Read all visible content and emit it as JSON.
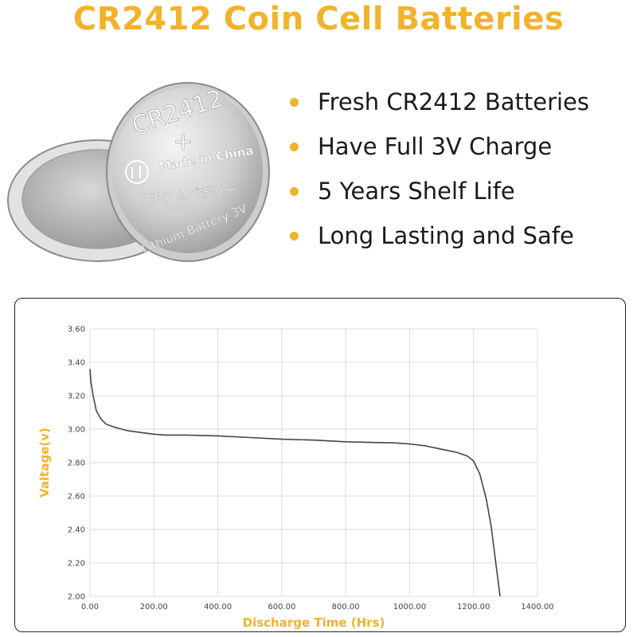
{
  "header": {
    "title": "CR2412  Coin Cell Batteries"
  },
  "battery": {
    "model": "CR2412",
    "plus": "+",
    "made_in": "Made in China",
    "japanese": "リチウムバテリー",
    "lithium": "Lithium Battery 3V"
  },
  "features": [
    "Fresh CR2412 Batteries",
    "Have Full 3V Charge",
    "5 Years Shelf Life",
    "Long Lasting and Safe"
  ],
  "colors": {
    "accent": "#f2b32a",
    "line": "#444444",
    "grid": "#dddddd"
  },
  "chart_data": {
    "type": "line",
    "title": "",
    "xlabel": "Discharge Time (Hrs)",
    "ylabel": "Valtage(v)",
    "xlim": [
      0,
      1400
    ],
    "ylim": [
      2.0,
      3.6
    ],
    "x_ticks": [
      "0.00",
      "200.00",
      "400.00",
      "600.00",
      "800.00",
      "1000.00",
      "1200.00",
      "1400.00"
    ],
    "y_ticks": [
      "2.00",
      "2.20",
      "2.40",
      "2.60",
      "2.80",
      "3.00",
      "3.20",
      "3.40",
      "3.60"
    ],
    "grid": true,
    "series": [
      {
        "x": [
          0,
          3,
          10,
          20,
          35,
          50,
          80,
          120,
          160,
          200,
          240,
          300,
          400,
          500,
          600,
          700,
          800,
          900,
          950,
          1000,
          1050,
          1100,
          1150,
          1180,
          1200,
          1220,
          1240,
          1255,
          1265,
          1275,
          1283
        ],
        "y": [
          3.36,
          3.28,
          3.2,
          3.11,
          3.06,
          3.03,
          3.01,
          2.99,
          2.98,
          2.97,
          2.965,
          2.965,
          2.96,
          2.95,
          2.94,
          2.935,
          2.925,
          2.92,
          2.918,
          2.912,
          2.9,
          2.88,
          2.86,
          2.84,
          2.81,
          2.73,
          2.58,
          2.42,
          2.27,
          2.12,
          2.0
        ]
      }
    ]
  }
}
